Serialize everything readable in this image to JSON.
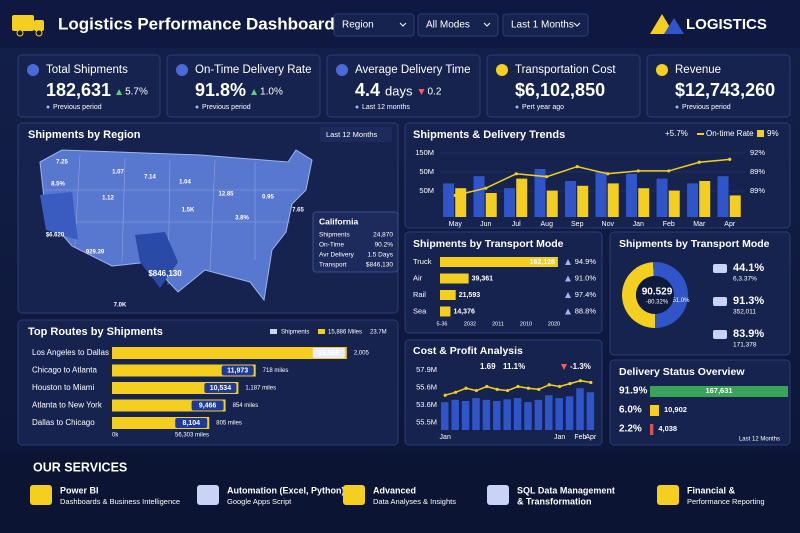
{
  "header": {
    "title": "Logistics Performance Dashboard",
    "filters": [
      "Region",
      "All Modes",
      "Last 1 Months"
    ],
    "brand": "LOGISTICS"
  },
  "kpis": [
    {
      "label": "Total Shipments",
      "value": "182,631",
      "delta": "5.7%",
      "trend": "up",
      "note": "Previous period"
    },
    {
      "label": "On-Time Delivery Rate",
      "value": "91.8%",
      "delta": "1.0%",
      "trend": "up",
      "note": "Previous period"
    },
    {
      "label": "Average Delivery Time",
      "value": "4.4",
      "unit": "days",
      "delta": "0.2",
      "trend": "down",
      "note": "Last 12 months"
    },
    {
      "label": "Transportation Cost",
      "value": "$6,102,850",
      "note": "Pert year ago"
    },
    {
      "label": "Revenue",
      "value": "$12,743,260",
      "note": "Previous period"
    }
  ],
  "map": {
    "title": "Shipments by Region",
    "period": "Last 12 Months",
    "labels": [
      "7.25",
      "8.5%",
      "1.07",
      "7.14",
      "1.04",
      "12.85",
      "0.95",
      "7.65",
      "1.12",
      "3.8%",
      "$6.620",
      "929.39",
      "$846,130",
      "1.5K",
      "7.0K"
    ],
    "tooltip": {
      "state": "California",
      "rows": [
        [
          "Shipments",
          "24,870"
        ],
        [
          "On-Time",
          "90.2%"
        ],
        [
          "Avr Delivery",
          "1.5 Days"
        ],
        [
          "Transport",
          "$846,130"
        ]
      ]
    }
  },
  "trends": {
    "type": "bar",
    "title": "Shipments & Delivery Trends",
    "legend": [
      "+5.7%",
      "On-time Rate",
      "9%"
    ],
    "categories": [
      "May",
      "Jun",
      "Jul",
      "Aug",
      "Sep",
      "Nov",
      "Jan",
      "Feb",
      "Mar",
      "Apr"
    ],
    "ylim": [
      0,
      150
    ],
    "y_labels": [
      "150M",
      "50M",
      "50M"
    ],
    "y2lim": [
      88,
      93
    ],
    "y2_labels": [
      "92%",
      "89%",
      "89%"
    ],
    "series": [
      {
        "color": "#2f55c8",
        "values": [
          70,
          85,
          60,
          100,
          75,
          95,
          90,
          80,
          70,
          85
        ]
      },
      {
        "color": "#f5cf1f",
        "values": [
          60,
          50,
          80,
          55,
          65,
          70,
          60,
          55,
          75,
          45
        ]
      },
      {
        "color": "#f5cf1f",
        "axis": "y2",
        "values": [
          89.5,
          90,
          91,
          90.8,
          91.5,
          91,
          91.2,
          91.2,
          91.8,
          92
        ]
      }
    ]
  },
  "transport": {
    "title": "Shipments by Transport Mode",
    "color": "#f5cf1f",
    "xlim": [
      0,
      165000
    ],
    "rows": [
      {
        "mode": "Truck",
        "value": 162128,
        "value_label": "162,128",
        "rate": "94.9%"
      },
      {
        "mode": "Air",
        "value": 39361,
        "value_label": "39,361",
        "rate": "91.0%"
      },
      {
        "mode": "Rail",
        "value": 21593,
        "value_label": "21,593",
        "rate": "97.4%"
      },
      {
        "mode": "Sea",
        "value": 14376,
        "value_label": "14,376",
        "rate": "88.8%"
      }
    ],
    "axis_labels": [
      "5-36",
      "2032",
      "2011",
      "2010",
      "2020"
    ]
  },
  "donut": {
    "type": "pie",
    "title": "Shipments by Transport Mode",
    "center_value": "90.529",
    "center_sub": "-80.32%",
    "slices": [
      {
        "value": 49,
        "color": "#f5cf1f"
      },
      {
        "value": 51,
        "color": "#2f55c8",
        "label": "51.0%"
      }
    ],
    "legend": [
      {
        "pct": "44.1%",
        "sub": "6,3.37%"
      },
      {
        "pct": "91.3%",
        "sub": "352,011"
      },
      {
        "pct": "83.9%",
        "sub": "171,378"
      }
    ]
  },
  "routes": {
    "title": "Top Routes by Shipments",
    "legend": [
      "Shipments",
      "15,886 Miles",
      "23.7M"
    ],
    "xlim": [
      0,
      20000
    ],
    "color": "#f5cf1f",
    "rows": [
      {
        "route": "Los Angeles to Dallas",
        "value": 19568,
        "value_label": "19,568",
        "miles": "2,005"
      },
      {
        "route": "Chicago to Atlanta",
        "value": 11973,
        "value_label": "11,973",
        "miles": "718 miles"
      },
      {
        "route": "Houston to Miami",
        "value": 10534,
        "value_label": "10,534",
        "miles": "1,187 miles"
      },
      {
        "route": "Atlanta to New York",
        "value": 9466,
        "value_label": "9,466",
        "miles": "854 miles"
      },
      {
        "route": "Dallas to Chicago",
        "value": 8104,
        "value_label": "8,104",
        "miles": "805 miles"
      }
    ],
    "axis_labels": [
      "0k",
      "56,303 miles"
    ]
  },
  "cost": {
    "type": "bar",
    "title": "Cost & Profit Analysis",
    "legend": [
      "1.69",
      "11.1%",
      "-1.3%"
    ],
    "y_labels": [
      "57.9M",
      "55.6M",
      "53.6M",
      "55.5M"
    ],
    "categories": [
      "Jan",
      null,
      null,
      null,
      null,
      null,
      null,
      null,
      null,
      null,
      null,
      "Jan",
      null,
      "Feb",
      "Apr"
    ],
    "ylim": [
      0,
      100
    ],
    "y2lim": [
      0,
      100
    ],
    "series": [
      {
        "color": "#2f55c8",
        "values": [
          48,
          52,
          50,
          55,
          52,
          50,
          53,
          55,
          48,
          52,
          60,
          55,
          58,
          72,
          65
        ]
      },
      {
        "color": "#f5cf1f",
        "axis": "y2",
        "values": [
          60,
          65,
          72,
          68,
          75,
          70,
          68,
          75,
          72,
          70,
          78,
          75,
          80,
          85,
          82
        ]
      }
    ]
  },
  "status": {
    "title": "Delivery Status Overview",
    "xlim": [
      0,
      170000
    ],
    "note": "Last 12 Months",
    "rows": [
      {
        "pct": "91.9%",
        "value": 167631,
        "value_label": "167,631",
        "color": "#3aa35a"
      },
      {
        "pct": "6.0%",
        "value": 10902,
        "value_label": "10,902",
        "color": "#f5cf1f"
      },
      {
        "pct": "2.2%",
        "value": 4038,
        "value_label": "4,038",
        "color": "#d9534f"
      }
    ]
  },
  "services": {
    "title": "OUR SERVICES",
    "items": [
      {
        "name": "Power BI",
        "desc": "Dashboards & Business Intelligence"
      },
      {
        "name": "Automation (Excel, Python)",
        "desc": "Google Apps Script"
      },
      {
        "name": "Advanced",
        "desc": "Data Analyses & Insights"
      },
      {
        "name": "SQL Data Management",
        "desc": "& Transformation"
      },
      {
        "name": "Financial &",
        "desc": "Performance Reporting"
      }
    ]
  }
}
